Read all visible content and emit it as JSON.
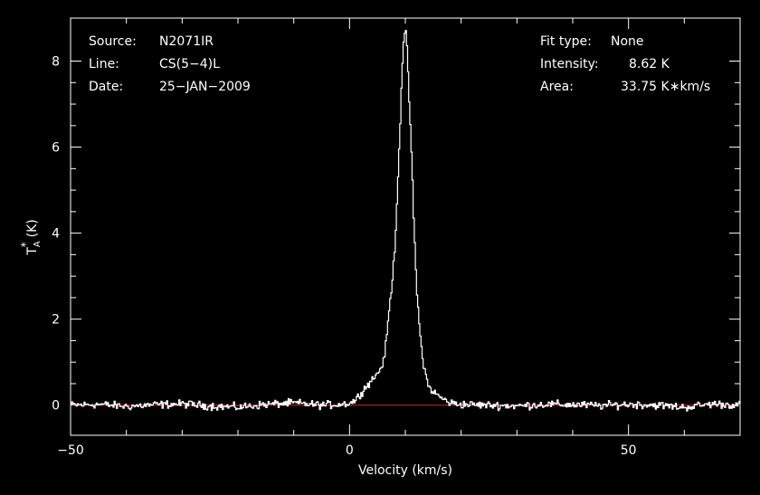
{
  "chart_data": {
    "type": "line",
    "title": "",
    "xlabel": "Velocity (km/s)",
    "ylabel": "T",
    "ylabel_sup": "*",
    "ylabel_sub": "A",
    "ylabel_unit": "(K)",
    "xlim": [
      -50,
      70
    ],
    "ylim": [
      -0.7,
      9.0
    ],
    "xticks": [
      -50,
      0,
      50
    ],
    "yticks": [
      0,
      2,
      4,
      6,
      8
    ],
    "grid": false,
    "colors": {
      "background": "#000000",
      "frame": "#ffffff",
      "spectrum": "#ffffff",
      "baseline": "#d42020"
    },
    "baseline_y": 0,
    "info_left": [
      {
        "key": "Source:",
        "value": "N2071IR"
      },
      {
        "key": "Line:",
        "value": "CS(5−4)L"
      },
      {
        "key": "Date:",
        "value": "25−JAN−2009"
      }
    ],
    "info_right": [
      {
        "key": "Fit type:",
        "value": "None"
      },
      {
        "key": "Intensity:",
        "value": "8.62 K"
      },
      {
        "key": "Area:",
        "value": "33.75 K∗km/s"
      }
    ],
    "series": [
      {
        "x": [
          -50,
          -45,
          -40,
          -35,
          -30,
          -25,
          -20,
          -15,
          -10,
          -5,
          -2,
          0,
          1,
          2,
          3,
          4,
          5,
          6,
          6.5,
          7,
          7.5,
          8,
          8.5,
          9,
          9.3,
          9.6,
          9.8,
          10,
          10.3,
          10.6,
          11,
          11.5,
          12,
          12.5,
          13,
          13.5,
          14,
          15,
          16,
          17,
          18,
          20,
          25,
          30,
          35,
          40,
          45,
          50,
          55,
          60,
          65,
          70
        ],
        "y": [
          0,
          0.02,
          -0.03,
          0.01,
          0.03,
          -0.02,
          -0.05,
          0.02,
          0.05,
          0,
          0.02,
          0.05,
          0.12,
          0.3,
          0.45,
          0.6,
          0.75,
          1.0,
          1.5,
          2.2,
          2.8,
          3.6,
          5.0,
          6.6,
          7.8,
          8.4,
          8.6,
          8.62,
          8.1,
          7.1,
          5.9,
          4.0,
          2.6,
          1.7,
          1.1,
          0.75,
          0.45,
          0.3,
          0.2,
          0.12,
          0.05,
          0.02,
          0,
          -0.02,
          0.02,
          0.01,
          -0.01,
          0.02,
          0,
          -0.05,
          0.03,
          0
        ]
      }
    ]
  }
}
